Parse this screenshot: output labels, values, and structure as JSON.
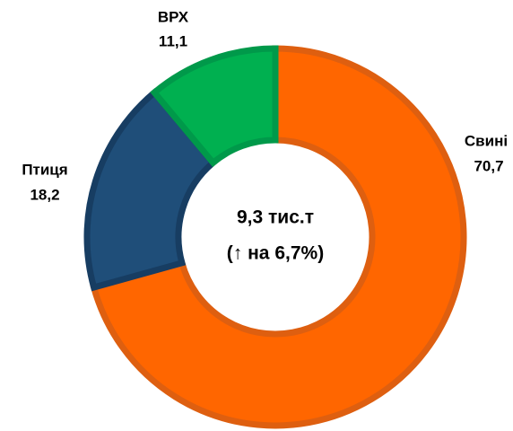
{
  "chart_data": {
    "type": "donut",
    "categories": [
      "Свині",
      "Птиця",
      "ВРХ"
    ],
    "values": [
      70.7,
      18.2,
      11.1
    ],
    "value_labels": [
      "70,7",
      "18,2",
      "11,1"
    ],
    "colors": [
      "#ff6600",
      "#1f4e79",
      "#00b050"
    ],
    "edgecolors": [
      "#de5f10",
      "#173d62",
      "#00994a"
    ],
    "center_text": [
      "9,3 тис.т",
      "(↑ на 6,7%)"
    ]
  }
}
